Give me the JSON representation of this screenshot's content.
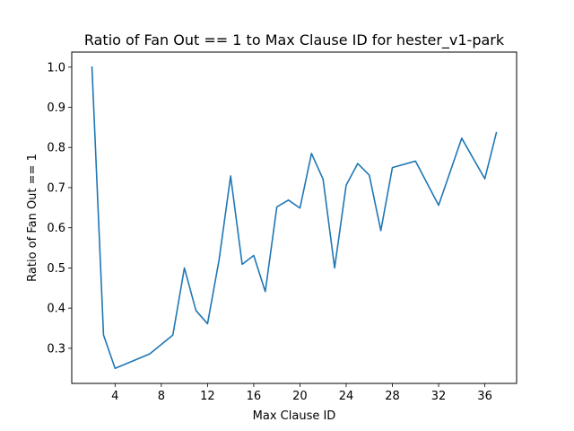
{
  "chart_data": {
    "type": "line",
    "title": "Ratio of Fan Out == 1 to Max Clause ID for hester_v1-park",
    "xlabel": "Max Clause ID",
    "ylabel": "Ratio of Fan Out == 1",
    "xlim": [
      0.25,
      38.75
    ],
    "ylim": [
      0.2125,
      1.0375
    ],
    "xticks": [
      4,
      8,
      12,
      16,
      20,
      24,
      28,
      32,
      36
    ],
    "yticks": [
      0.3,
      0.4,
      0.5,
      0.6,
      0.7,
      0.8,
      0.9,
      1.0
    ],
    "ytick_labels": [
      "0.3",
      "0.4",
      "0.5",
      "0.6",
      "0.7",
      "0.8",
      "0.9",
      "1.0"
    ],
    "grid": false,
    "line_color": "#1f77b4",
    "series": [
      {
        "x": [
          2,
          3,
          4,
          7,
          9,
          10,
          11,
          12,
          13,
          14,
          15,
          16,
          17,
          18,
          19,
          20,
          21,
          22,
          23,
          24,
          25,
          26,
          27,
          28,
          30,
          32,
          34,
          36,
          37
        ],
        "y": [
          1.0,
          0.333,
          0.25,
          0.286,
          0.333,
          0.5,
          0.394,
          0.361,
          0.52,
          0.729,
          0.509,
          0.531,
          0.441,
          0.652,
          0.669,
          0.649,
          0.785,
          0.721,
          0.5,
          0.706,
          0.76,
          0.731,
          0.593,
          0.75,
          0.766,
          0.656,
          0.823,
          0.722,
          0.837
        ]
      }
    ]
  }
}
